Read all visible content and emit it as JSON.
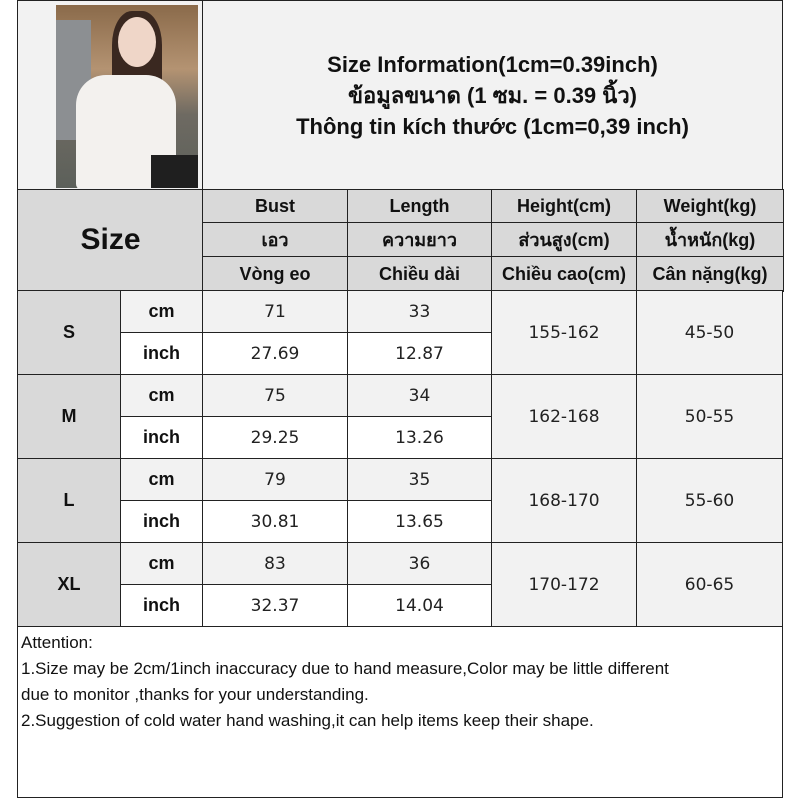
{
  "header": {
    "lines": [
      "Size Information(1cm=0.39inch)",
      "ข้อมูลขนาด (1 ซม. = 0.39 นิ้ว)",
      "Thông tin kích thước (1cm=0,39 inch)"
    ]
  },
  "table": {
    "size_label": "Size",
    "columns": [
      {
        "en": "Bust",
        "th": "เอว",
        "vi": "Vòng eo"
      },
      {
        "en": "Length",
        "th": "ความยาว",
        "vi": "Chiều dài"
      },
      {
        "en": "Height(cm)",
        "th": "ส่วนสูง(cm)",
        "vi": "Chiều cao(cm)"
      },
      {
        "en": "Weight(kg)",
        "th": "น้ำหนัก(kg)",
        "vi": "Cân nặng(kg)"
      }
    ],
    "unit_cm": "cm",
    "unit_inch": "inch",
    "rows": [
      {
        "size": "S",
        "bust_cm": "71",
        "length_cm": "33",
        "bust_inch": "27.69",
        "length_inch": "12.87",
        "height": "155-162",
        "weight": "45-50"
      },
      {
        "size": "M",
        "bust_cm": "75",
        "length_cm": "34",
        "bust_inch": "29.25",
        "length_inch": "13.26",
        "height": "162-168",
        "weight": "50-55"
      },
      {
        "size": "L",
        "bust_cm": "79",
        "length_cm": "35",
        "bust_inch": "30.81",
        "length_inch": "13.65",
        "height": "168-170",
        "weight": "55-60"
      },
      {
        "size": "XL",
        "bust_cm": "83",
        "length_cm": "36",
        "bust_inch": "32.37",
        "length_inch": "14.04",
        "height": "170-172",
        "weight": "60-65"
      }
    ]
  },
  "attention": {
    "title": "Attention:",
    "lines": [
      "1.Size may be 2cm/1inch inaccuracy due to hand measure,Color may be little different",
      "due to monitor ,thanks for your understanding.",
      "2.Suggestion of cold water hand washing,it can help items keep their shape."
    ]
  },
  "colors": {
    "header_gray": "#d9d9d9",
    "light_gray": "#f2f2f2",
    "border": "#222222"
  }
}
